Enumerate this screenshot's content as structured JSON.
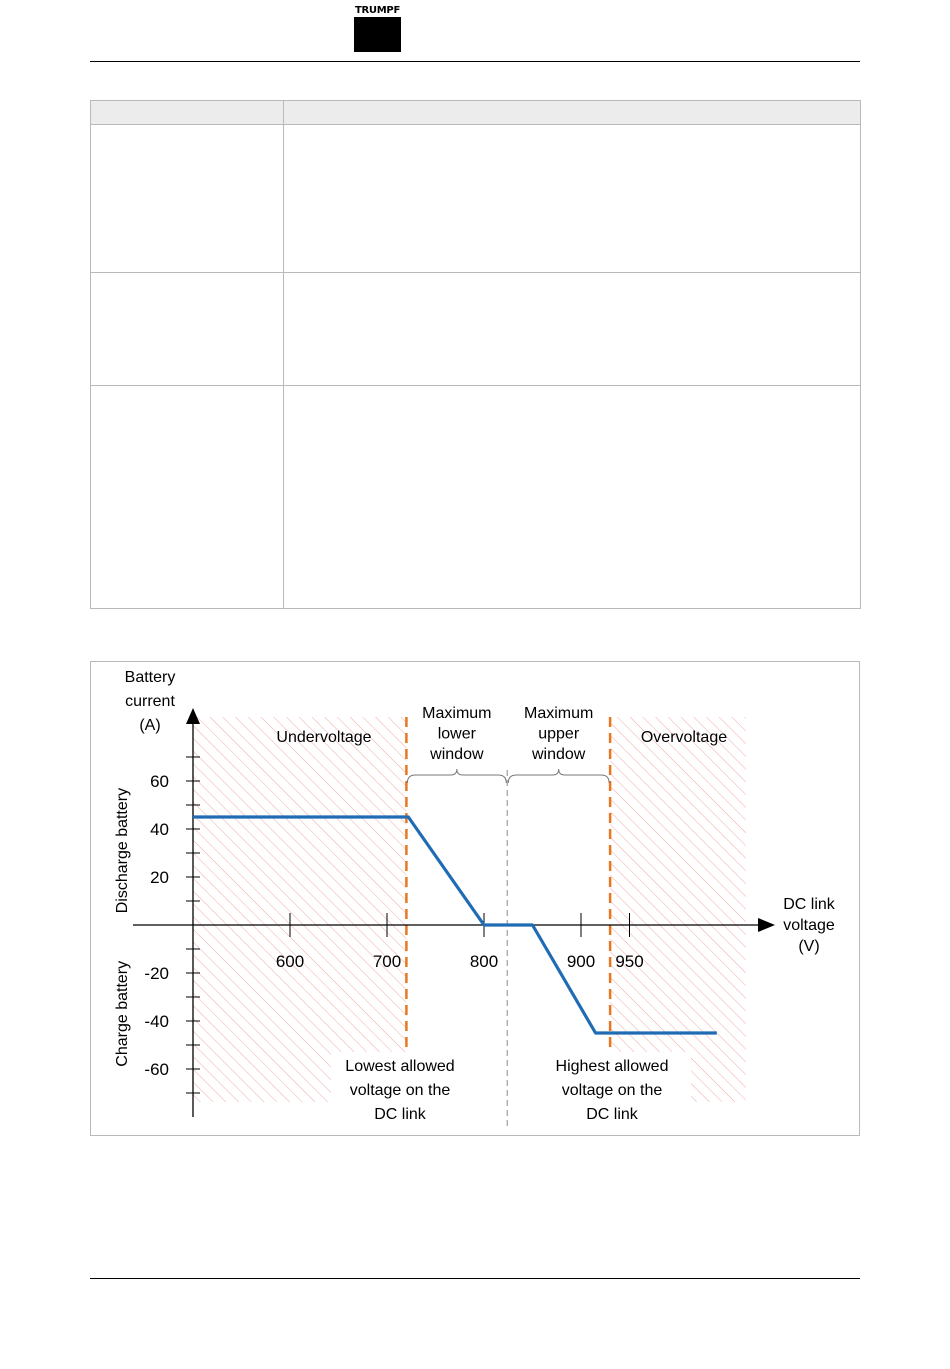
{
  "header": {
    "logo_text": "TRUMPF"
  },
  "table": {
    "rows": [
      {},
      {},
      {}
    ]
  },
  "chart_data": {
    "type": "line",
    "title": "",
    "ylabel": "Battery current (A)",
    "ylabel_lines": [
      "Battery",
      "current",
      "(A)"
    ],
    "xlabel": "DC link voltage (V)",
    "xlabel_lines": [
      "DC link",
      "voltage",
      "(V)"
    ],
    "y_upper_label": "Discharge battery",
    "y_lower_label": "Charge battery",
    "xlim": [
      500,
      1070
    ],
    "ylim": [
      -80,
      90
    ],
    "x_ticks": [
      600,
      700,
      800,
      900,
      950
    ],
    "y_ticks": [
      60,
      40,
      20,
      -20,
      -40,
      -60
    ],
    "y_minor_ticks": [
      70,
      50,
      30,
      10,
      -10,
      -30,
      -50,
      -70
    ],
    "series": [
      {
        "color": "#1f6cb4",
        "x": [
          500,
          722,
          800,
          850,
          915,
          1040
        ],
        "y": [
          45,
          45,
          0,
          0,
          -45,
          -45
        ]
      }
    ],
    "regions": {
      "undervoltage_label": "Undervoltage",
      "overvoltage_label": "Overvoltage",
      "undervoltage_range": [
        500,
        720
      ],
      "overvoltage_range": [
        930,
        1070
      ]
    },
    "thresholds": [
      {
        "x": 720,
        "color": "#e87722",
        "label_lines": [
          "Lowest allowed",
          "voltage on the",
          "DC link"
        ]
      },
      {
        "x": 930,
        "color": "#e87722",
        "label_lines": [
          "Highest allowed",
          "voltage on the",
          "DC link"
        ]
      }
    ],
    "center_line": {
      "x": 824,
      "color": "#b0b0b0"
    },
    "windows": [
      {
        "label_lines": [
          "Maximum",
          "lower",
          "window"
        ],
        "from": 720,
        "to": 824
      },
      {
        "label_lines": [
          "Maximum",
          "upper",
          "window"
        ],
        "from": 824,
        "to": 930
      }
    ]
  }
}
